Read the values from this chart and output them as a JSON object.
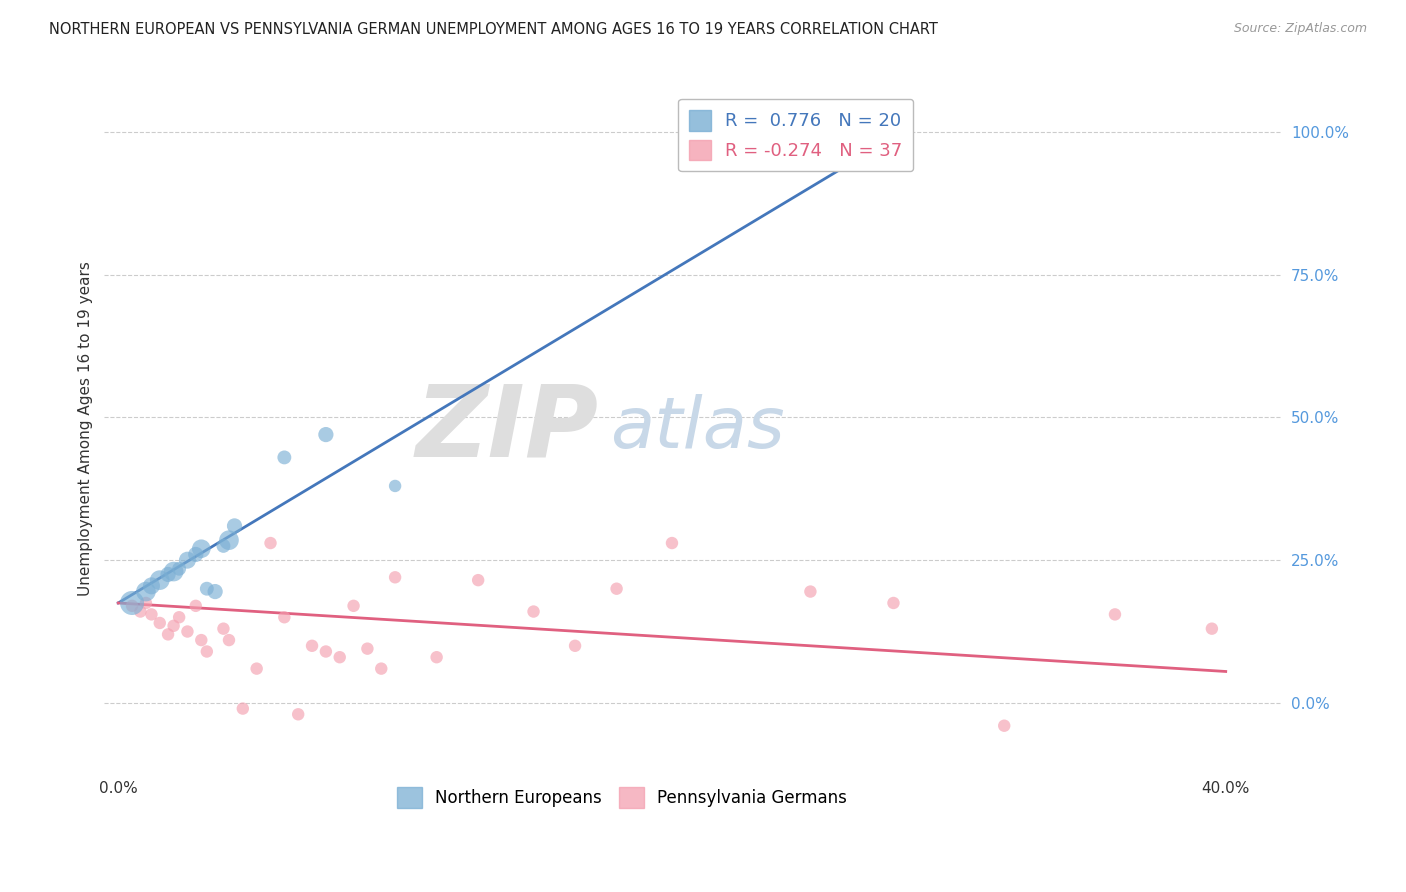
{
  "title": "NORTHERN EUROPEAN VS PENNSYLVANIA GERMAN UNEMPLOYMENT AMONG AGES 16 TO 19 YEARS CORRELATION CHART",
  "source": "Source: ZipAtlas.com",
  "ylabel": "Unemployment Among Ages 16 to 19 years",
  "xlim": [
    -0.005,
    0.42
  ],
  "ylim": [
    -0.12,
    1.08
  ],
  "ytick_positions": [
    0.0,
    0.25,
    0.5,
    0.75,
    1.0
  ],
  "yticklabels_right": [
    "0.0%",
    "25.0%",
    "50.0%",
    "75.0%",
    "100.0%"
  ],
  "blue_R": 0.776,
  "blue_N": 20,
  "pink_R": -0.274,
  "pink_N": 37,
  "blue_color": "#7BAFD4",
  "pink_color": "#F4A0B0",
  "blue_line_color": "#4477BB",
  "pink_line_color": "#E06080",
  "watermark_zip": "ZIP",
  "watermark_atlas": "atlas",
  "watermark_color": "#DEDEDE",
  "background_color": "#FFFFFF",
  "grid_color": "#CCCCCC",
  "blue_scatter_x": [
    0.005,
    0.01,
    0.012,
    0.015,
    0.018,
    0.02,
    0.022,
    0.025,
    0.028,
    0.03,
    0.032,
    0.035,
    0.038,
    0.04,
    0.042,
    0.06,
    0.075,
    0.1,
    0.275,
    0.28
  ],
  "blue_scatter_y": [
    0.175,
    0.195,
    0.205,
    0.215,
    0.225,
    0.23,
    0.235,
    0.25,
    0.26,
    0.27,
    0.2,
    0.195,
    0.275,
    0.285,
    0.31,
    0.43,
    0.47,
    0.38,
    0.96,
    0.975
  ],
  "blue_scatter_sizes": [
    300,
    200,
    150,
    200,
    120,
    200,
    100,
    150,
    120,
    180,
    100,
    120,
    100,
    200,
    120,
    100,
    120,
    80,
    150,
    120
  ],
  "pink_scatter_x": [
    0.005,
    0.008,
    0.01,
    0.012,
    0.015,
    0.018,
    0.02,
    0.022,
    0.025,
    0.028,
    0.03,
    0.032,
    0.038,
    0.04,
    0.045,
    0.05,
    0.055,
    0.06,
    0.065,
    0.07,
    0.075,
    0.08,
    0.085,
    0.09,
    0.095,
    0.1,
    0.115,
    0.13,
    0.15,
    0.165,
    0.18,
    0.2,
    0.25,
    0.28,
    0.32,
    0.36,
    0.395
  ],
  "pink_scatter_y": [
    0.17,
    0.16,
    0.175,
    0.155,
    0.14,
    0.12,
    0.135,
    0.15,
    0.125,
    0.17,
    0.11,
    0.09,
    0.13,
    0.11,
    -0.01,
    0.06,
    0.28,
    0.15,
    -0.02,
    0.1,
    0.09,
    0.08,
    0.17,
    0.095,
    0.06,
    0.22,
    0.08,
    0.215,
    0.16,
    0.1,
    0.2,
    0.28,
    0.195,
    0.175,
    -0.04,
    0.155,
    0.13
  ],
  "pink_scatter_sizes": [
    80,
    80,
    80,
    80,
    80,
    80,
    80,
    80,
    80,
    80,
    80,
    80,
    80,
    80,
    80,
    80,
    80,
    80,
    80,
    80,
    80,
    80,
    80,
    80,
    80,
    80,
    80,
    80,
    80,
    80,
    80,
    80,
    80,
    80,
    80,
    80,
    80
  ],
  "blue_line_x0": 0.0,
  "blue_line_y0": 0.175,
  "blue_line_x1": 0.285,
  "blue_line_y1": 1.005,
  "pink_line_x0": 0.0,
  "pink_line_y0": 0.175,
  "pink_line_x1": 0.4,
  "pink_line_y1": 0.055
}
